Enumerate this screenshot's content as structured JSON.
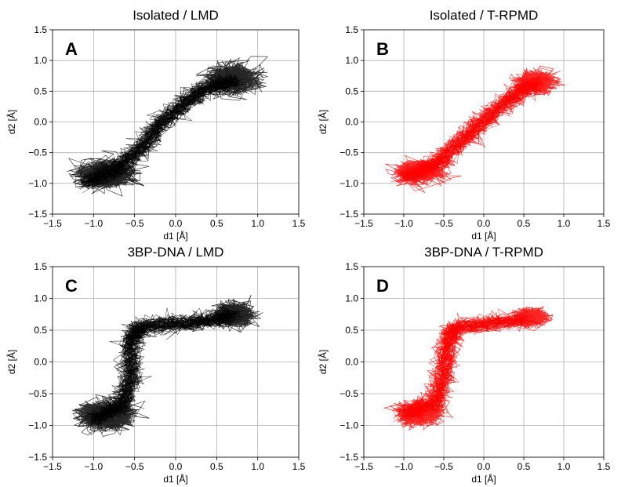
{
  "chart_data": [
    {
      "type": "line",
      "title": "Isolated / LMD",
      "panel_label": "A",
      "xlabel": "d1 [Å]",
      "ylabel": "d2 [Å]",
      "xlim": [
        -1.5,
        1.5
      ],
      "ylim": [
        -1.5,
        1.5
      ],
      "xticks": [
        "−1.5",
        "−1.0",
        "−0.5",
        "0.0",
        "0.5",
        "1.0",
        "1.5"
      ],
      "yticks": [
        "−1.5",
        "−1.0",
        "−0.5",
        "0.0",
        "0.5",
        "1.0",
        "1.5"
      ],
      "grid": true,
      "color": "#000000",
      "clusters": [
        {
          "x": -0.85,
          "y": -0.85,
          "spread_x": 0.18,
          "spread_y": 0.11
        },
        {
          "x": 0.7,
          "y": 0.7,
          "spread_x": 0.16,
          "spread_y": 0.12
        }
      ],
      "path": [
        [
          -1.1,
          -1.0
        ],
        [
          -0.7,
          -0.75
        ],
        [
          -0.4,
          -0.4
        ],
        [
          -0.2,
          -0.05
        ],
        [
          0.1,
          0.3
        ],
        [
          0.35,
          0.55
        ],
        [
          0.8,
          0.7
        ]
      ]
    },
    {
      "type": "line",
      "title": "Isolated / T-RPMD",
      "panel_label": "B",
      "xlabel": "d1 [Å]",
      "ylabel": "d2 [Å]",
      "xlim": [
        -1.5,
        1.5
      ],
      "ylim": [
        -1.5,
        1.5
      ],
      "xticks": [
        "−1.5",
        "−1.0",
        "−0.5",
        "0.0",
        "0.5",
        "1.0",
        "1.5"
      ],
      "yticks": [
        "−1.5",
        "−1.0",
        "−0.5",
        "0.0",
        "0.5",
        "1.0",
        "1.5"
      ],
      "grid": true,
      "color": "#ff0000",
      "clusters": [
        {
          "x": -0.8,
          "y": -0.8,
          "spread_x": 0.15,
          "spread_y": 0.09
        },
        {
          "x": 0.65,
          "y": 0.65,
          "spread_x": 0.12,
          "spread_y": 0.09
        }
      ],
      "path": [
        [
          -1.0,
          -0.9
        ],
        [
          -0.6,
          -0.7
        ],
        [
          -0.35,
          -0.4
        ],
        [
          -0.1,
          -0.1
        ],
        [
          0.2,
          0.25
        ],
        [
          0.45,
          0.5
        ],
        [
          0.7,
          0.65
        ]
      ]
    },
    {
      "type": "line",
      "title": "3BP-DNA / LMD",
      "panel_label": "C",
      "xlabel": "d1 [Å]",
      "ylabel": "d2 [Å]",
      "xlim": [
        -1.5,
        1.5
      ],
      "ylim": [
        -1.5,
        1.5
      ],
      "xticks": [
        "−1.5",
        "−1.0",
        "−0.5",
        "0.0",
        "0.5",
        "1.0",
        "1.5"
      ],
      "yticks": [
        "−1.5",
        "−1.0",
        "−0.5",
        "0.0",
        "0.5",
        "1.0",
        "1.5"
      ],
      "grid": true,
      "color": "#000000",
      "clusters": [
        {
          "x": -0.85,
          "y": -0.85,
          "spread_x": 0.17,
          "spread_y": 0.12
        },
        {
          "x": 0.7,
          "y": 0.75,
          "spread_x": 0.12,
          "spread_y": 0.09
        }
      ],
      "path": [
        [
          -1.0,
          -0.9
        ],
        [
          -0.65,
          -0.7
        ],
        [
          -0.55,
          -0.25
        ],
        [
          -0.55,
          0.3
        ],
        [
          -0.45,
          0.55
        ],
        [
          0.0,
          0.6
        ],
        [
          0.4,
          0.65
        ],
        [
          0.75,
          0.75
        ]
      ]
    },
    {
      "type": "line",
      "title": "3BP-DNA / T-RPMD",
      "panel_label": "D",
      "xlabel": "d1 [Å]",
      "ylabel": "d2 [Å]",
      "xlim": [
        -1.5,
        1.5
      ],
      "ylim": [
        -1.5,
        1.5
      ],
      "xticks": [
        "−1.5",
        "−1.0",
        "−0.5",
        "0.0",
        "0.5",
        "1.0",
        "1.5"
      ],
      "yticks": [
        "−1.5",
        "−1.0",
        "−0.5",
        "0.0",
        "0.5",
        "1.0",
        "1.5"
      ],
      "grid": true,
      "color": "#ff0000",
      "clusters": [
        {
          "x": -0.8,
          "y": -0.8,
          "spread_x": 0.14,
          "spread_y": 0.1
        },
        {
          "x": 0.6,
          "y": 0.7,
          "spread_x": 0.09,
          "spread_y": 0.07
        }
      ],
      "path": [
        [
          -1.0,
          -0.85
        ],
        [
          -0.6,
          -0.65
        ],
        [
          -0.5,
          -0.2
        ],
        [
          -0.45,
          0.3
        ],
        [
          -0.35,
          0.55
        ],
        [
          0.1,
          0.6
        ],
        [
          0.6,
          0.7
        ]
      ]
    }
  ]
}
